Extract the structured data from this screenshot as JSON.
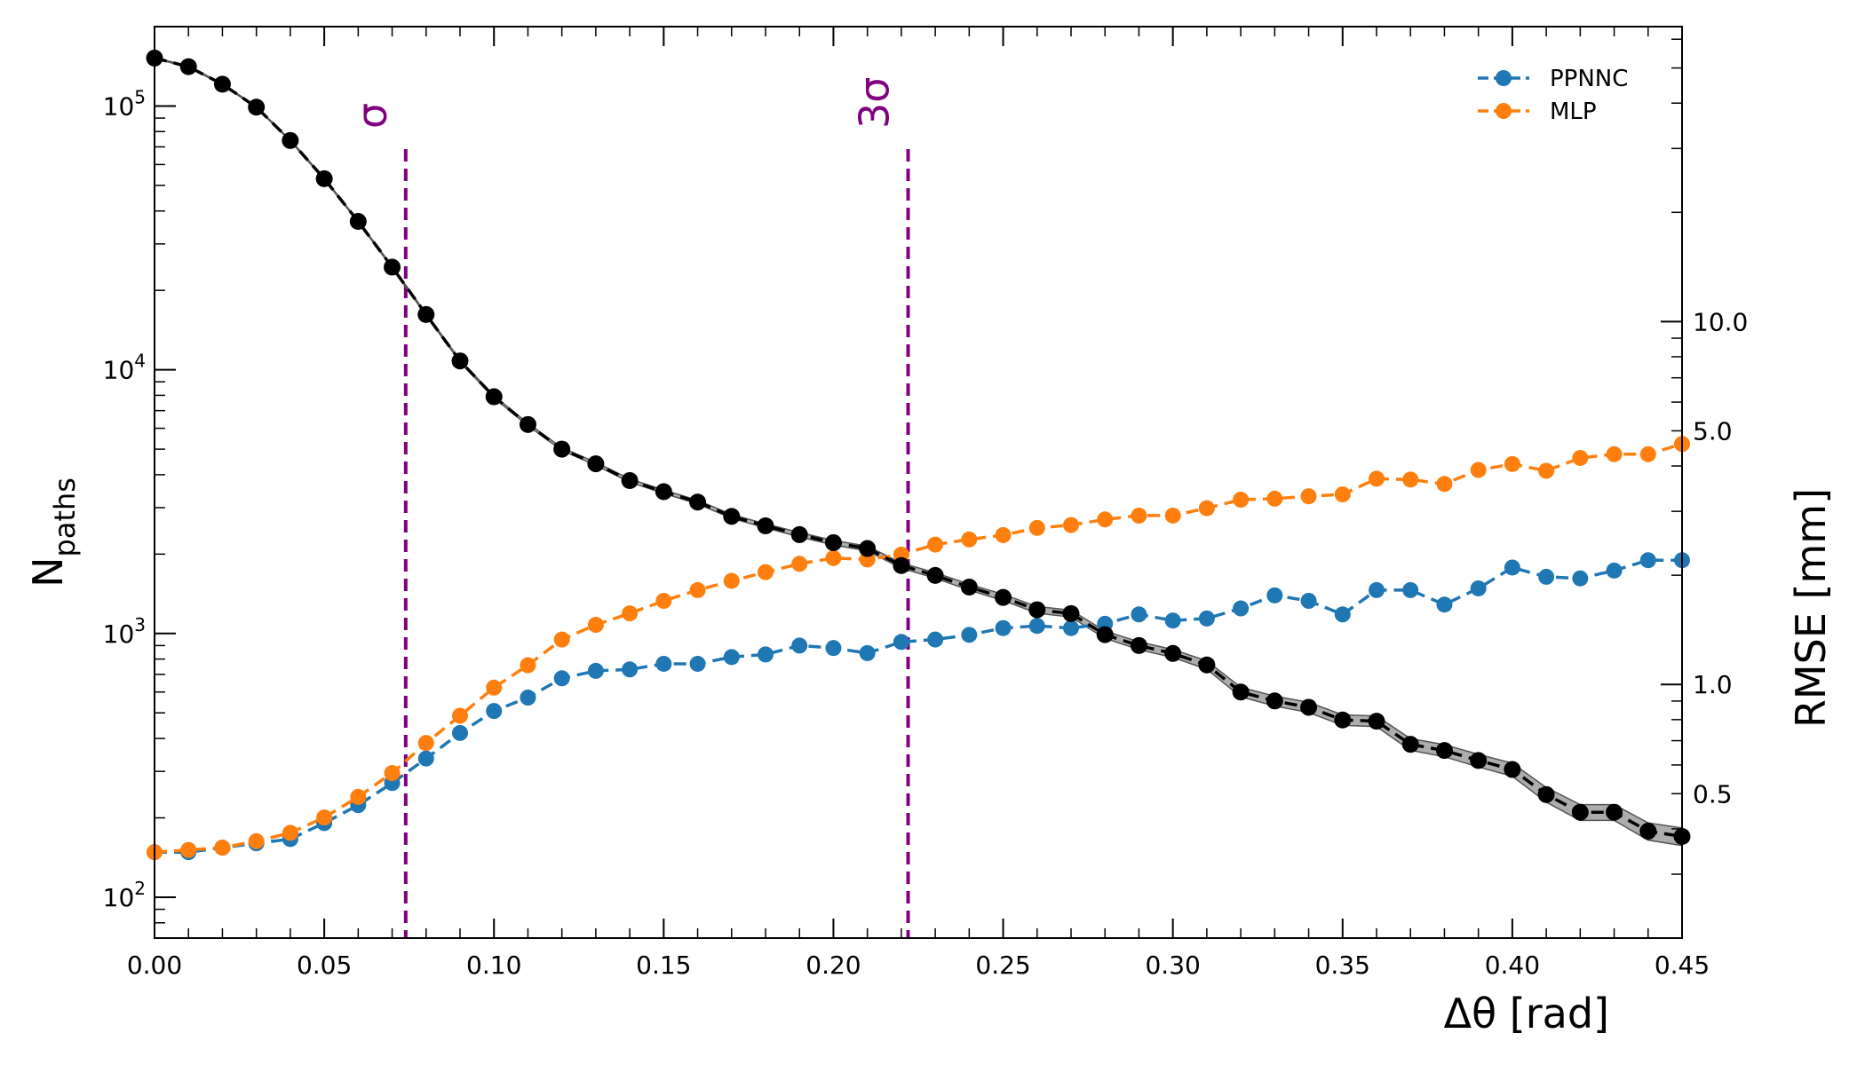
{
  "chart_data": {
    "type": "line",
    "x": [
      0.0,
      0.01,
      0.02,
      0.03,
      0.04,
      0.05,
      0.06,
      0.07,
      0.08,
      0.09,
      0.1,
      0.11,
      0.12,
      0.13,
      0.14,
      0.15,
      0.16,
      0.17,
      0.18,
      0.19,
      0.2,
      0.21,
      0.22,
      0.23,
      0.24,
      0.25,
      0.26,
      0.27,
      0.28,
      0.29,
      0.3,
      0.31,
      0.32,
      0.33,
      0.34,
      0.35,
      0.36,
      0.37,
      0.38,
      0.39,
      0.4,
      0.41,
      0.42,
      0.43,
      0.44,
      0.45
    ],
    "xlabel": "Δθ  [rad]",
    "xlim": [
      0.0,
      0.45
    ],
    "x_ticks": [
      {
        "value": 0.0,
        "label": "0.00"
      },
      {
        "value": 0.05,
        "label": "0.05"
      },
      {
        "value": 0.1,
        "label": "0.10"
      },
      {
        "value": 0.15,
        "label": "0.15"
      },
      {
        "value": 0.2,
        "label": "0.20"
      },
      {
        "value": 0.25,
        "label": "0.25"
      },
      {
        "value": 0.3,
        "label": "0.30"
      },
      {
        "value": 0.35,
        "label": "0.35"
      },
      {
        "value": 0.4,
        "label": "0.40"
      },
      {
        "value": 0.45,
        "label": "0.45"
      }
    ],
    "left_axis": {
      "label_main": "N",
      "label_sub": "paths",
      "scale": "log",
      "ylim": [
        70,
        200000
      ],
      "ticks": [
        {
          "value": 100,
          "base": "10",
          "exp": "2"
        },
        {
          "value": 1000,
          "base": "10",
          "exp": "3"
        },
        {
          "value": 10000,
          "base": "10",
          "exp": "4"
        },
        {
          "value": 100000,
          "base": "10",
          "exp": "5"
        }
      ]
    },
    "right_axis": {
      "label": "RMSE [mm]",
      "scale": "log",
      "ylim": [
        0.2,
        65
      ],
      "ticks": [
        {
          "value": 0.5,
          "label": "0.5"
        },
        {
          "value": 1.0,
          "label": "1.0"
        },
        {
          "value": 5.0,
          "label": "5.0"
        },
        {
          "value": 10.0,
          "label": "10.0"
        }
      ]
    },
    "npaths": {
      "color": "#000000",
      "band_color": "#999999",
      "values": [
        152000,
        141000,
        121000,
        99000,
        74000,
        53000,
        36500,
        24500,
        16200,
        10800,
        7900,
        6200,
        5000,
        4400,
        3800,
        3450,
        3150,
        2780,
        2560,
        2370,
        2210,
        2100,
        1810,
        1660,
        1500,
        1370,
        1230,
        1190,
        990,
        900,
        840,
        760,
        600,
        555,
        525,
        470,
        465,
        380,
        360,
        330,
        305,
        245,
        210,
        210,
        178,
        170
      ],
      "band_rel": [
        0.005,
        0.005,
        0.005,
        0.005,
        0.005,
        0.006,
        0.006,
        0.007,
        0.008,
        0.009,
        0.01,
        0.011,
        0.012,
        0.013,
        0.014,
        0.015,
        0.016,
        0.017,
        0.018,
        0.019,
        0.02,
        0.021,
        0.023,
        0.024,
        0.026,
        0.027,
        0.029,
        0.03,
        0.032,
        0.034,
        0.035,
        0.037,
        0.041,
        0.043,
        0.044,
        0.046,
        0.046,
        0.051,
        0.053,
        0.055,
        0.057,
        0.064,
        0.069,
        0.069,
        0.075,
        0.077
      ]
    },
    "series": [
      {
        "name": "PPNNC",
        "color": "#1f77b4",
        "axis": "right",
        "values": [
          0.345,
          0.345,
          0.355,
          0.365,
          0.375,
          0.415,
          0.465,
          0.535,
          0.625,
          0.735,
          0.845,
          0.92,
          1.04,
          1.09,
          1.1,
          1.14,
          1.14,
          1.19,
          1.21,
          1.28,
          1.26,
          1.22,
          1.31,
          1.33,
          1.37,
          1.43,
          1.45,
          1.43,
          1.47,
          1.56,
          1.5,
          1.52,
          1.62,
          1.76,
          1.7,
          1.56,
          1.82,
          1.82,
          1.66,
          1.84,
          2.1,
          1.98,
          1.96,
          2.06,
          2.2,
          2.2
        ]
      },
      {
        "name": "MLP",
        "color": "#ff7f0e",
        "axis": "right",
        "values": [
          0.345,
          0.35,
          0.355,
          0.37,
          0.39,
          0.43,
          0.49,
          0.57,
          0.69,
          0.82,
          0.98,
          1.13,
          1.33,
          1.46,
          1.57,
          1.7,
          1.82,
          1.93,
          2.04,
          2.15,
          2.23,
          2.21,
          2.28,
          2.43,
          2.51,
          2.58,
          2.7,
          2.75,
          2.85,
          2.92,
          2.92,
          3.06,
          3.23,
          3.25,
          3.3,
          3.34,
          3.69,
          3.67,
          3.57,
          3.9,
          4.05,
          3.88,
          4.21,
          4.31,
          4.31,
          4.6
        ]
      }
    ],
    "vlines": [
      {
        "x": 0.074,
        "label": "σ",
        "color": "#800080"
      },
      {
        "x": 0.222,
        "label": "3σ",
        "color": "#800080"
      }
    ],
    "legend_position": "top-right",
    "grid": false
  }
}
